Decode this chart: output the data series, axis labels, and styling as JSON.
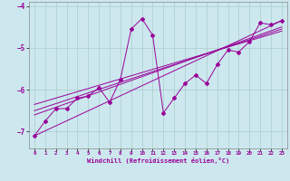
{
  "xlabel": "Windchill (Refroidissement éolien,°C)",
  "background_color": "#cce8ee",
  "grid_color": "#aacccc",
  "line_color": "#990099",
  "xlim": [
    -0.5,
    23.5
  ],
  "ylim": [
    -7.4,
    -3.9
  ],
  "xticks": [
    0,
    1,
    2,
    3,
    4,
    5,
    6,
    7,
    8,
    9,
    10,
    11,
    12,
    13,
    14,
    15,
    16,
    17,
    18,
    19,
    20,
    21,
    22,
    23
  ],
  "yticks": [
    -7,
    -6,
    -5,
    -4
  ],
  "scatter_x": [
    0,
    1,
    2,
    3,
    4,
    5,
    6,
    7,
    8,
    9,
    10,
    11,
    12,
    13,
    14,
    15,
    16,
    17,
    18,
    19,
    20,
    21,
    22,
    23
  ],
  "scatter_y": [
    -7.1,
    -6.75,
    -6.45,
    -6.45,
    -6.2,
    -6.15,
    -5.95,
    -6.3,
    -5.75,
    -4.55,
    -4.3,
    -4.7,
    -6.55,
    -6.2,
    -5.85,
    -5.65,
    -5.85,
    -5.4,
    -5.05,
    -5.1,
    -4.85,
    -4.4,
    -4.45,
    -4.35
  ],
  "line1_x": [
    0,
    23
  ],
  "line1_y": [
    -7.1,
    -4.35
  ],
  "line2_x": [
    0,
    23
  ],
  "line2_y": [
    -6.6,
    -4.5
  ],
  "line3_x": [
    0,
    23
  ],
  "line3_y": [
    -6.5,
    -4.55
  ],
  "line4_x": [
    0,
    23
  ],
  "line4_y": [
    -6.35,
    -4.6
  ]
}
